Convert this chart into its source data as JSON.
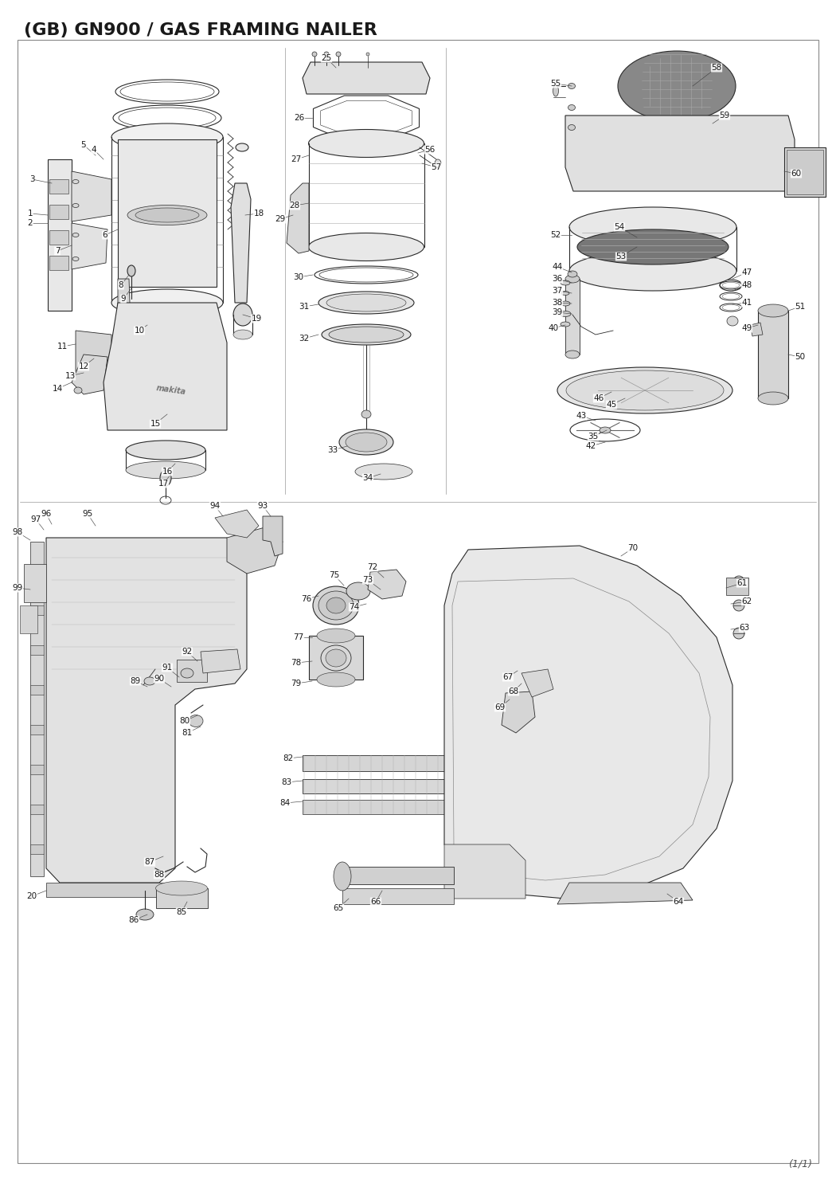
{
  "title": "(GB) GN900 / GAS FRAMING NAILER",
  "page_label": "(1/1)",
  "title_fontsize": 16,
  "background_color": "#ffffff",
  "border_color": "#999999",
  "text_color": "#1a1a1a",
  "label_fontsize": 7.5,
  "figsize": [
    10.5,
    14.85
  ],
  "dpi": 100
}
